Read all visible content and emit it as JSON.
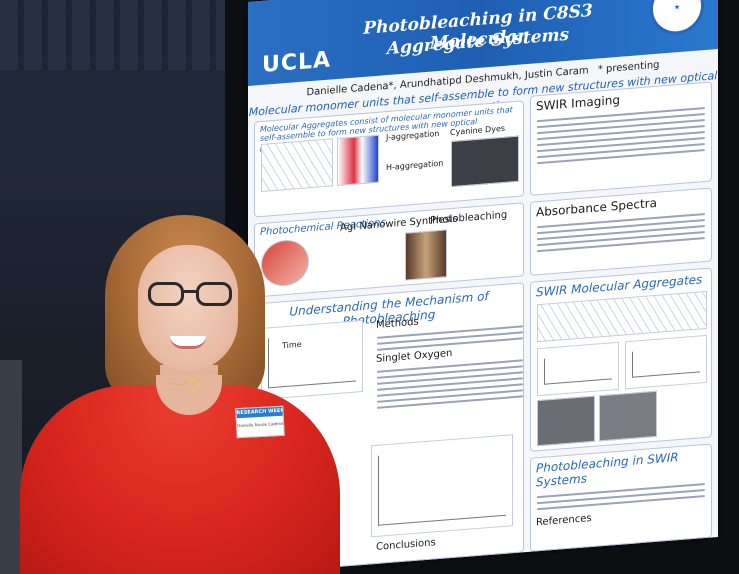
{
  "poster": {
    "institution": "UCLA",
    "title_line1": "Photobleaching in C8S3 Molecular",
    "title_line2": "Aggregate Systems",
    "authors": "Danielle Cadena*, Arundhatipd Deshmukh, Justin Caram",
    "presenting_note": "* presenting",
    "tagline": "Molecular monomer units that self-assemble to form new structures with new optical properties",
    "sections": {
      "molecular_aggregates": "Molecular Aggregates consist of molecular monomer units that self-assemble to form new structures with new optical properties",
      "cyanine_dyes": "Cyanine Dyes",
      "h_aggregation": "H-aggregation",
      "j_aggregation": "J-aggregation",
      "swir_imaging": "SWIR Imaging",
      "photochemical": "Photochemical Reactions",
      "agi_nanowire": "AgI Nanowire Synthesis",
      "photobleaching": "Photobleaching",
      "absorbance": "Absorbance Spectra",
      "mechanism": "Understanding the Mechanism of Photobleaching",
      "methods": "Methods",
      "singlet_oxygen": "Singlet Oxygen",
      "swir_aggregates": "SWIR Molecular Aggregates",
      "photobleaching_swir": "Photobleaching in SWIR Systems",
      "conclusions": "Conclusions",
      "references": "References",
      "time_label": "Time"
    }
  },
  "badge": {
    "header": "RESEARCH WEEK",
    "name": "Danielle Nicole Cadena"
  }
}
